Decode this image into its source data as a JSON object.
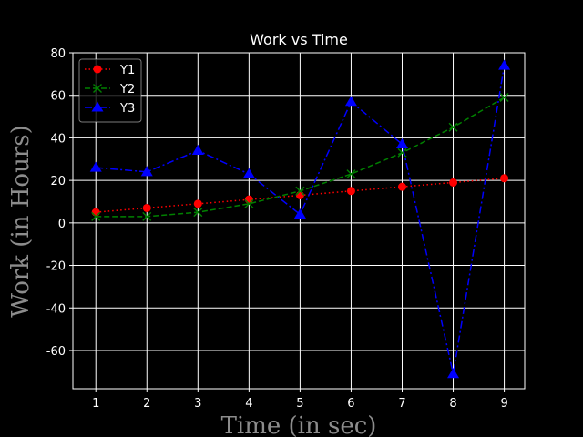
{
  "chart_data": {
    "type": "line",
    "title": "Work vs Time",
    "xlabel": "Time (in sec)",
    "ylabel": "Work (in Hours)",
    "x": [
      1,
      2,
      3,
      4,
      5,
      6,
      7,
      8,
      9
    ],
    "xlim": [
      0.55,
      9.4
    ],
    "ylim": [
      -78,
      80
    ],
    "xticks": [
      1,
      2,
      3,
      4,
      5,
      6,
      7,
      8,
      9
    ],
    "yticks": [
      -60,
      -40,
      -20,
      0,
      20,
      40,
      60,
      80
    ],
    "grid": true,
    "legend_position": "upper-left",
    "background": "#000000",
    "series": [
      {
        "name": "Y1",
        "values": [
          5,
          7,
          9,
          11,
          13,
          15,
          17,
          19,
          21
        ],
        "color": "#ff0000",
        "linestyle": "dotted",
        "marker": "circle"
      },
      {
        "name": "Y2",
        "values": [
          3,
          3,
          5,
          9,
          15,
          23,
          33,
          45,
          59
        ],
        "color": "#008000",
        "linestyle": "dashed",
        "marker": "x"
      },
      {
        "name": "Y3",
        "values": [
          26,
          24,
          34,
          23,
          4,
          57,
          37,
          -71,
          74
        ],
        "color": "#0000ff",
        "linestyle": "dashdot",
        "marker": "triangle-up"
      }
    ]
  }
}
